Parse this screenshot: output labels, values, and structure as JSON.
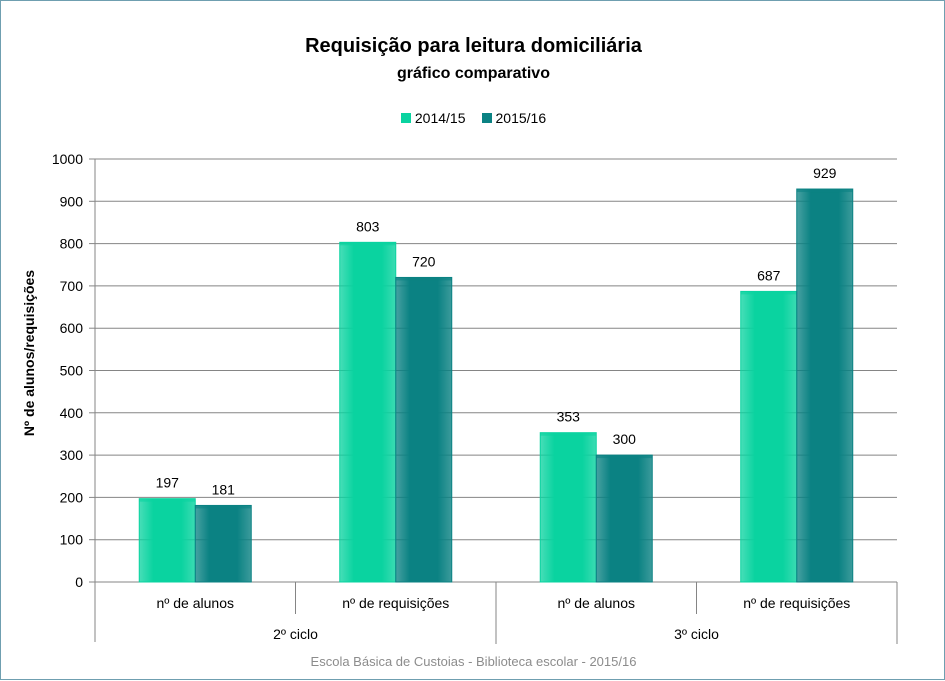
{
  "chart_data": {
    "type": "bar",
    "title": "Requisição para leitura domiciliária",
    "subtitle": "gráfico comparativo",
    "ylabel": "Nº de alunos/requisições",
    "ylim": [
      0,
      1000
    ],
    "yticks": [
      0,
      100,
      200,
      300,
      400,
      500,
      600,
      700,
      800,
      900,
      1000
    ],
    "categories": [
      "nº de alunos",
      "nº de requisições",
      "nº de alunos",
      "nº de requisições"
    ],
    "groups": [
      {
        "label": "2º ciclo",
        "categories": [
          0,
          1
        ]
      },
      {
        "label": "3º ciclo",
        "categories": [
          2,
          3
        ]
      }
    ],
    "series": [
      {
        "name": "2014/15",
        "color": "#0ad3a0",
        "values": [
          197,
          803,
          353,
          687
        ]
      },
      {
        "name": "2015/16",
        "color": "#0b8283",
        "values": [
          181,
          720,
          300,
          929
        ]
      }
    ],
    "grid": true,
    "legend_position": "top"
  },
  "footer": "Escola Básica de Custoias - Biblioteca escolar - 2015/16"
}
